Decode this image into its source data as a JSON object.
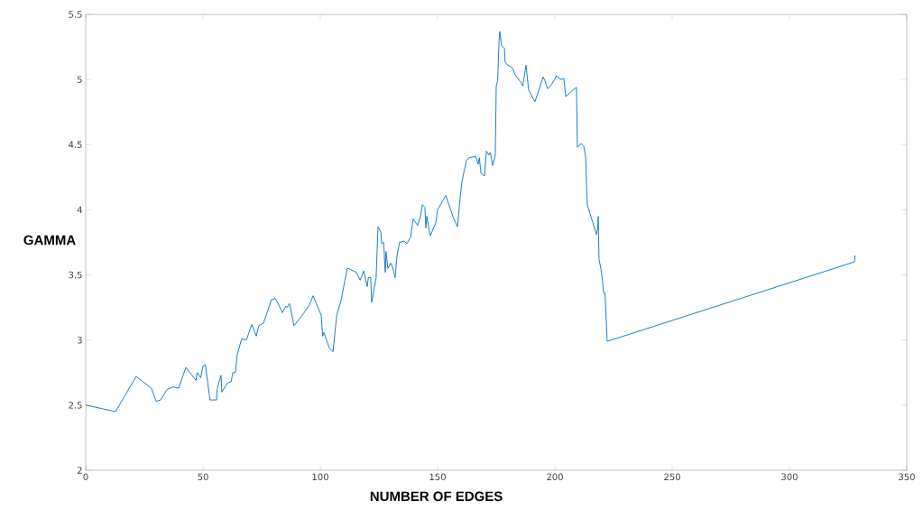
{
  "chart_data": {
    "type": "line",
    "xlabel": "NUMBER OF EDGES",
    "ylabel": "GAMMA",
    "xlim": [
      0,
      350
    ],
    "ylim": [
      2,
      5.5
    ],
    "xticks": [
      0,
      50,
      100,
      150,
      200,
      250,
      300,
      350
    ],
    "yticks": [
      2,
      2.5,
      3,
      3.5,
      4,
      4.5,
      5,
      5.5
    ],
    "grid": false,
    "series": [
      {
        "color": "#0072bd",
        "x": [
          0,
          2.7,
          12.7,
          21.5,
          28,
          30,
          32,
          34.6,
          37.3,
          39.6,
          42.7,
          47,
          47.5,
          49,
          50,
          51,
          53,
          55.8,
          56,
          57.7,
          58,
          60.4,
          62,
          62.7,
          63.8,
          64.6,
          66.5,
          68.5,
          70.8,
          72.7,
          73.8,
          75.8,
          79.2,
          80.8,
          82.3,
          83.8,
          85.4,
          85.8,
          86.9,
          88.8,
          92.3,
          95.4,
          96.9,
          100.4,
          101,
          101.5,
          103.8,
          105.4,
          107,
          108.8,
          110.4,
          111.5,
          111.9,
          115.4,
          117,
          118.5,
          120,
          120.5,
          121.5,
          121.9,
          123.8,
          124.6,
          125.8,
          126.2,
          127,
          127.7,
          128,
          128.8,
          130,
          130.8,
          131.9,
          132.7,
          133.8,
          135.8,
          136.9,
          138.5,
          139.6,
          141.5,
          142.7,
          143.5,
          144.6,
          145,
          145.4,
          146.9,
          149.2,
          150,
          153.5,
          156.9,
          158.5,
          159.6,
          160.4,
          162.3,
          163.5,
          166.2,
          167.3,
          167.8,
          168.5,
          170,
          170.8,
          171.9,
          172.5,
          173.5,
          174.6,
          175,
          175.6,
          176.2,
          176.5,
          177.3,
          178.5,
          178.8,
          180,
          181.9,
          183,
          185.8,
          186.3,
          187.7,
          188.8,
          191.5,
          195,
          195.8,
          196.9,
          198.5,
          200.8,
          202.3,
          203.8,
          204.6,
          207.7,
          209.2,
          209.6,
          211.2,
          212.3,
          213.1,
          213.8,
          216.2,
          217.7,
          218.3,
          218.5,
          218.8,
          219.6,
          220.4,
          220.8,
          221.4,
          222.3,
          327.7,
          328
        ],
        "values": [
          2.5,
          2.49,
          2.45,
          2.72,
          2.63,
          2.53,
          2.54,
          2.62,
          2.64,
          2.63,
          2.79,
          2.69,
          2.75,
          2.71,
          2.8,
          2.81,
          2.54,
          2.54,
          2.62,
          2.73,
          2.6,
          2.67,
          2.68,
          2.75,
          2.75,
          2.89,
          3.01,
          3.0,
          3.12,
          3.03,
          3.11,
          3.13,
          3.31,
          3.32,
          3.27,
          3.21,
          3.26,
          3.25,
          3.28,
          3.11,
          3.19,
          3.27,
          3.34,
          3.19,
          3.03,
          3.06,
          2.94,
          2.91,
          3.19,
          3.3,
          3.45,
          3.55,
          3.55,
          3.52,
          3.46,
          3.53,
          3.41,
          3.48,
          3.48,
          3.29,
          3.48,
          3.87,
          3.83,
          3.74,
          3.75,
          3.52,
          3.68,
          3.55,
          3.59,
          3.56,
          3.48,
          3.65,
          3.75,
          3.76,
          3.74,
          3.79,
          3.93,
          3.88,
          3.95,
          4.04,
          4.02,
          3.86,
          3.95,
          3.8,
          3.9,
          4.0,
          4.11,
          3.93,
          3.87,
          4.09,
          4.22,
          4.38,
          4.4,
          4.41,
          4.35,
          4.4,
          4.28,
          4.26,
          4.45,
          4.42,
          4.44,
          4.34,
          4.42,
          4.95,
          4.99,
          5.29,
          5.37,
          5.26,
          5.24,
          5.13,
          5.11,
          5.09,
          5.04,
          4.97,
          4.95,
          5.11,
          4.92,
          4.83,
          5.02,
          4.99,
          4.93,
          4.96,
          5.03,
          5.0,
          5.01,
          4.87,
          4.92,
          4.94,
          4.48,
          4.51,
          4.49,
          4.41,
          4.04,
          3.9,
          3.81,
          3.86,
          3.95,
          3.62,
          3.55,
          3.44,
          3.36,
          3.36,
          2.99,
          3.6,
          3.65
        ]
      }
    ]
  }
}
